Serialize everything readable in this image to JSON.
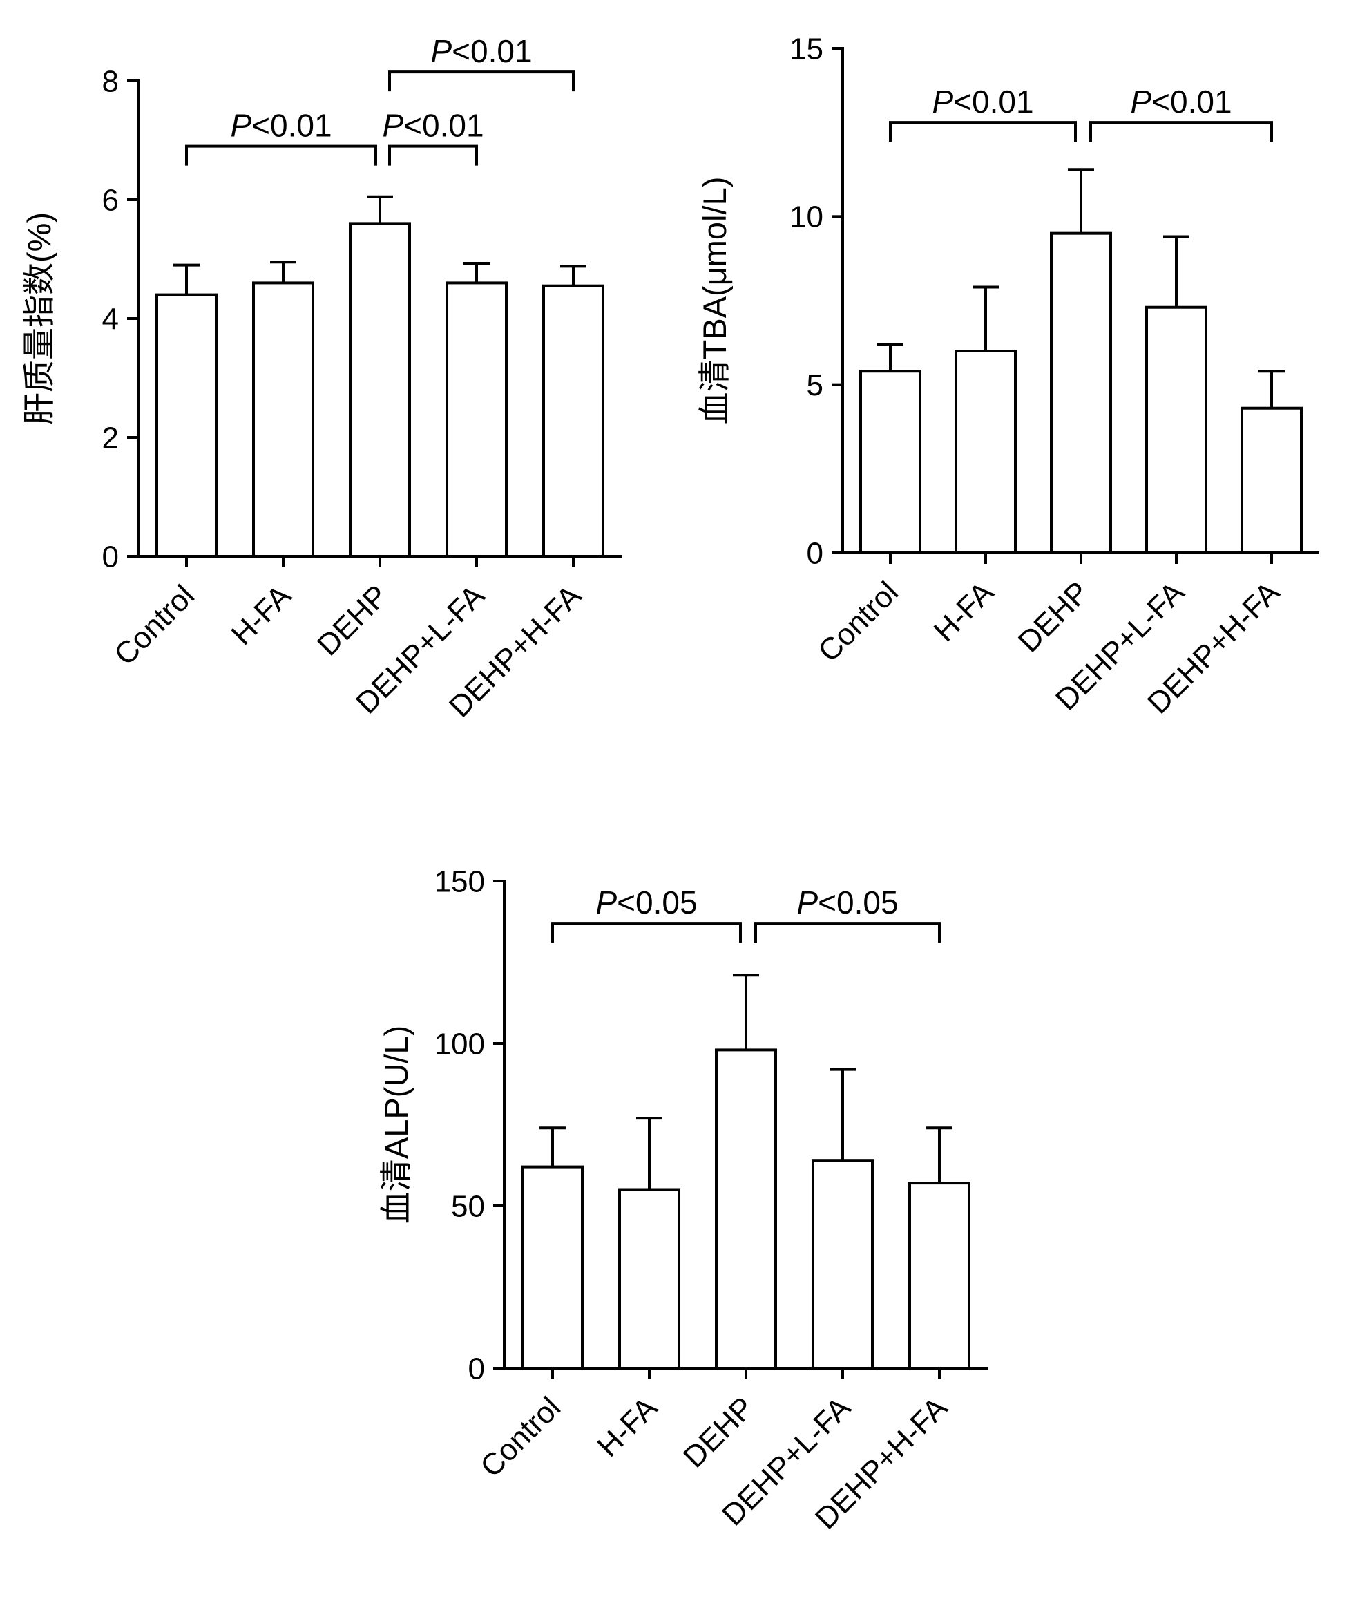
{
  "figure": {
    "background": "#ffffff",
    "axis_color": "#000000",
    "bar_fill": "#ffffff",
    "bar_stroke": "#000000"
  },
  "chart_data": [
    {
      "id": "liver-mass-index",
      "type": "bar",
      "title": "",
      "xlabel": "",
      "ylabel": "肝质量指数(%)",
      "categories": [
        "Control",
        "H-FA",
        "DEHP",
        "DEHP+L-FA",
        "DEHP+H-FA"
      ],
      "values": [
        4.4,
        4.6,
        5.6,
        4.6,
        4.55
      ],
      "errors": [
        0.5,
        0.35,
        0.45,
        0.33,
        0.33
      ],
      "ylim": [
        0,
        8
      ],
      "yticks": [
        0,
        2,
        4,
        6,
        8
      ],
      "grid": false,
      "legend": "none",
      "annotations": [
        {
          "label": "P<0.01",
          "from": 0,
          "to": 2,
          "y": 6.9
        },
        {
          "label": "P<0.01",
          "from": 2,
          "to": 3,
          "y": 6.9
        },
        {
          "label": "P<0.01",
          "from": 2,
          "to": 4,
          "y": 8.15
        }
      ]
    },
    {
      "id": "serum-tba",
      "type": "bar",
      "title": "",
      "xlabel": "",
      "ylabel": "血清TBA(μmol/L)",
      "categories": [
        "Control",
        "H-FA",
        "DEHP",
        "DEHP+L-FA",
        "DEHP+H-FA"
      ],
      "values": [
        5.4,
        6.0,
        9.5,
        7.3,
        4.3
      ],
      "errors": [
        0.8,
        1.9,
        1.9,
        2.1,
        1.1
      ],
      "ylim": [
        0,
        15
      ],
      "yticks": [
        0,
        5,
        10,
        15
      ],
      "grid": false,
      "legend": "none",
      "annotations": [
        {
          "label": "P<0.01",
          "from": 0,
          "to": 2,
          "y": 12.8
        },
        {
          "label": "P<0.01",
          "from": 2,
          "to": 4,
          "y": 12.8
        }
      ]
    },
    {
      "id": "serum-alp",
      "type": "bar",
      "title": "",
      "xlabel": "",
      "ylabel": "血清ALP(U/L)",
      "categories": [
        "Control",
        "H-FA",
        "DEHP",
        "DEHP+L-FA",
        "DEHP+H-FA"
      ],
      "values": [
        62,
        55,
        98,
        64,
        57
      ],
      "errors": [
        12,
        22,
        23,
        28,
        17
      ],
      "ylim": [
        0,
        150
      ],
      "yticks": [
        0,
        50,
        100,
        150
      ],
      "grid": false,
      "legend": "none",
      "annotations": [
        {
          "label": "P<0.05",
          "from": 0,
          "to": 2,
          "y": 137
        },
        {
          "label": "P<0.05",
          "from": 2,
          "to": 4,
          "y": 137
        }
      ]
    }
  ]
}
